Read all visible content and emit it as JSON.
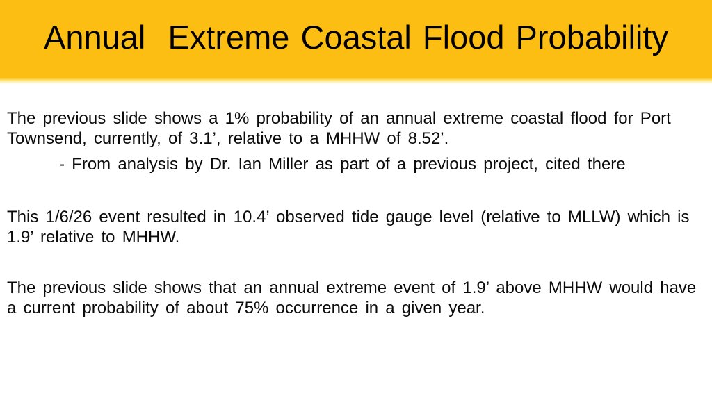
{
  "slide_title": "Annual  Extreme Coastal Flood Probability",
  "colors": {
    "banner": "#fcbe13",
    "title_text": "#000000",
    "body_text": "#0b0b0b"
  },
  "body": {
    "p1": {
      "line1": "The previous slide shows a 1% probability of an annual extreme coastal flood for Port",
      "line2": "Townsend, currently, of 3.1’, relative to a MHHW of 8.52’."
    },
    "citation": "- From analysis by Dr. Ian Miller as part of a previous project, cited there",
    "p2": {
      "line1": "This 1/6/26 event resulted in 10.4’ observed tide gauge level (relative to MLLW) which is",
      "line2": "1.9’ relative to MHHW."
    },
    "p3": {
      "line1": "The previous slide shows that an annual extreme event of 1.9’ above MHHW would have",
      "line2": "a current probability of about 75% occurrence in a given year."
    }
  }
}
